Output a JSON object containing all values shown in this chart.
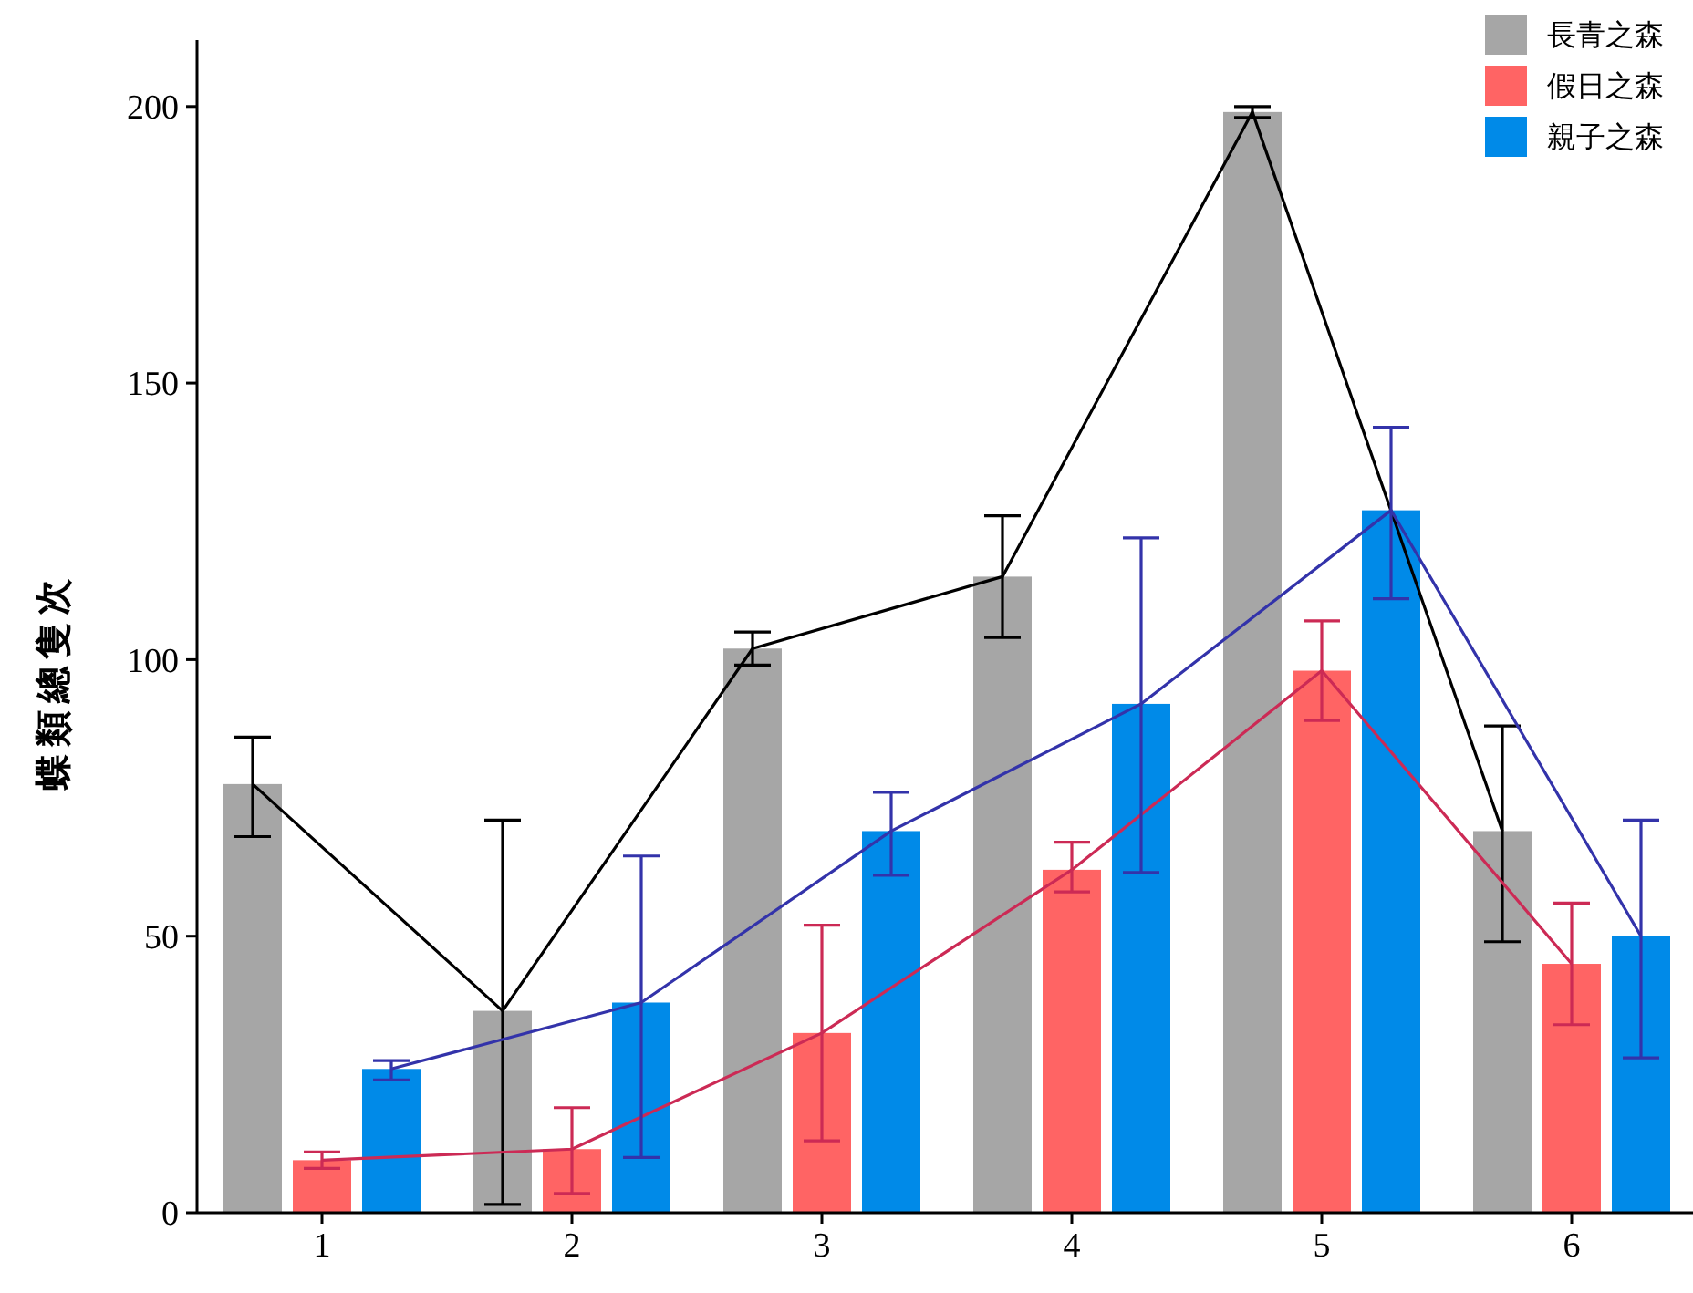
{
  "chart_data": {
    "type": "bar",
    "ylabel": "蝶類總隻次",
    "categories": [
      "1",
      "2",
      "3",
      "4",
      "5",
      "6"
    ],
    "ylim": [
      0,
      212
    ],
    "yticks": [
      0,
      50,
      100,
      150,
      200
    ],
    "grid": false,
    "legend": "top right",
    "series": [
      {
        "name": "長青之森",
        "color": "#a6a6a6",
        "values": [
          77.5,
          36.5,
          102,
          115,
          199,
          69
        ]
      },
      {
        "name": "假日之森",
        "color": "#ff6464",
        "values": [
          9.5,
          11.5,
          32.5,
          62,
          98,
          45
        ]
      },
      {
        "name": "親子之森",
        "color": "#008ae8",
        "values": [
          26,
          38,
          69,
          92,
          127,
          50
        ]
      },
      {
        "type": "line",
        "color": "#000000",
        "values": [
          77.5,
          36.5,
          102,
          115,
          199,
          69
        ],
        "errors": [
          [
            68,
            86
          ],
          [
            1.5,
            71
          ],
          [
            99,
            105
          ],
          [
            104,
            126
          ],
          [
            198,
            200
          ],
          [
            49,
            88
          ]
        ]
      },
      {
        "type": "line",
        "color": "#cc2a55",
        "values": [
          9.5,
          11.5,
          32.5,
          62,
          98,
          45
        ],
        "errors": [
          [
            8,
            11
          ],
          [
            3.5,
            19
          ],
          [
            13,
            52
          ],
          [
            58,
            67
          ],
          [
            89,
            107
          ],
          [
            34,
            56
          ]
        ]
      },
      {
        "type": "line",
        "color": "#3333aa",
        "values": [
          26,
          38,
          69,
          92,
          127,
          50
        ],
        "errors": [
          [
            24,
            27.5
          ],
          [
            10,
            64.5
          ],
          [
            61,
            76
          ],
          [
            61.5,
            122
          ],
          [
            111,
            142
          ],
          [
            28,
            71
          ]
        ]
      }
    ]
  }
}
